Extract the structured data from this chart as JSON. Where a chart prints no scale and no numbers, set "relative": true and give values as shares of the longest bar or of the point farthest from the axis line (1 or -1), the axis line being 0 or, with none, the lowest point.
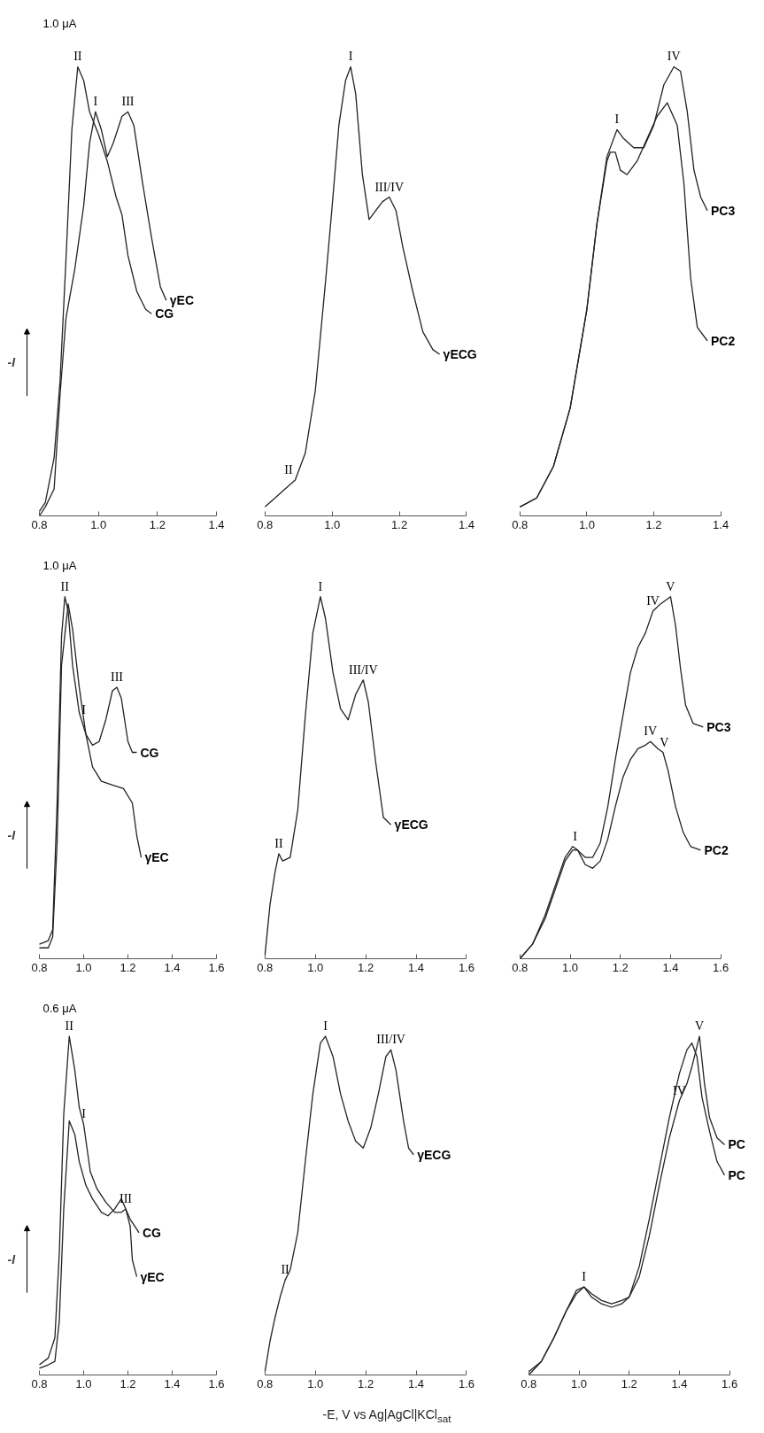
{
  "chart_data": [
    {
      "type": "line",
      "relative": true,
      "ylabel": "-I",
      "xlim": [
        0.8,
        1.4
      ],
      "xticks": [
        {
          "value": 0.8,
          "label": "0.8"
        },
        {
          "value": 1.0,
          "label": "1.0"
        },
        {
          "value": 1.2,
          "label": "1.2"
        },
        {
          "value": 1.4,
          "label": "1.4"
        }
      ],
      "series": [
        {
          "name": "CG",
          "color": "#222222",
          "x": [
            0.8,
            0.82,
            0.85,
            0.87,
            0.89,
            0.91,
            0.93,
            0.95,
            0.97,
            1.0,
            1.03,
            1.06,
            1.08,
            1.1,
            1.13,
            1.16,
            1.18
          ],
          "values": [
            0.01,
            0.03,
            0.13,
            0.3,
            0.57,
            0.86,
            1.0,
            0.97,
            0.9,
            0.85,
            0.79,
            0.71,
            0.67,
            0.58,
            0.5,
            0.46,
            0.45
          ]
        },
        {
          "name": "γEC",
          "color": "#222222",
          "x": [
            0.8,
            0.82,
            0.85,
            0.87,
            0.89,
            0.92,
            0.95,
            0.97,
            0.99,
            1.01,
            1.03,
            1.05,
            1.08,
            1.1,
            1.12,
            1.15,
            1.18,
            1.21,
            1.23
          ],
          "values": [
            0.0,
            0.02,
            0.06,
            0.27,
            0.44,
            0.55,
            0.69,
            0.83,
            0.9,
            0.86,
            0.8,
            0.83,
            0.89,
            0.9,
            0.87,
            0.74,
            0.62,
            0.51,
            0.48
          ]
        }
      ],
      "annotations": [
        "1.0 μA",
        {
          "text": "II",
          "x": 0.93,
          "y": 1.0
        },
        {
          "text": "I",
          "x": 0.99,
          "y": 0.9
        },
        {
          "text": "III",
          "x": 1.1,
          "y": 0.9
        }
      ]
    },
    {
      "type": "line",
      "relative": true,
      "xlim": [
        0.8,
        1.4
      ],
      "xticks": [
        {
          "value": 0.8,
          "label": "0.8"
        },
        {
          "value": 1.0,
          "label": "1.0"
        },
        {
          "value": 1.2,
          "label": "1.2"
        },
        {
          "value": 1.4,
          "label": "1.4"
        }
      ],
      "series": [
        {
          "name": "γECG",
          "color": "#222222",
          "x": [
            0.8,
            0.83,
            0.86,
            0.89,
            0.92,
            0.95,
            0.98,
            1.0,
            1.02,
            1.04,
            1.055,
            1.07,
            1.09,
            1.11,
            1.13,
            1.15,
            1.17,
            1.19,
            1.21,
            1.24,
            1.27,
            1.3,
            1.32
          ],
          "values": [
            0.02,
            0.04,
            0.06,
            0.08,
            0.14,
            0.28,
            0.52,
            0.69,
            0.87,
            0.97,
            1.0,
            0.94,
            0.76,
            0.66,
            0.68,
            0.7,
            0.71,
            0.68,
            0.6,
            0.5,
            0.41,
            0.37,
            0.36
          ]
        }
      ],
      "annotations": [
        {
          "text": "II",
          "x": 0.87,
          "y": 0.08
        },
        {
          "text": "I",
          "x": 1.055,
          "y": 1.0
        },
        {
          "text": "III/IV",
          "x": 1.17,
          "y": 0.71
        }
      ]
    },
    {
      "type": "line",
      "relative": true,
      "xlim": [
        0.8,
        1.4
      ],
      "xticks": [
        {
          "value": 0.8,
          "label": "0.8"
        },
        {
          "value": 1.0,
          "label": "1.0"
        },
        {
          "value": 1.2,
          "label": "1.2"
        },
        {
          "value": 1.4,
          "label": "1.4"
        }
      ],
      "series": [
        {
          "name": "PC3",
          "color": "#222222",
          "x": [
            0.8,
            0.85,
            0.9,
            0.95,
            1.0,
            1.03,
            1.06,
            1.09,
            1.11,
            1.14,
            1.17,
            1.2,
            1.23,
            1.26,
            1.28,
            1.3,
            1.32,
            1.34,
            1.36
          ],
          "values": [
            0.02,
            0.04,
            0.11,
            0.24,
            0.46,
            0.65,
            0.8,
            0.86,
            0.84,
            0.82,
            0.82,
            0.87,
            0.96,
            1.0,
            0.99,
            0.9,
            0.77,
            0.71,
            0.68
          ]
        },
        {
          "name": "PC2",
          "color": "#222222",
          "x": [
            0.8,
            0.85,
            0.9,
            0.95,
            1.0,
            1.03,
            1.06,
            1.07,
            1.085,
            1.1,
            1.12,
            1.15,
            1.18,
            1.21,
            1.24,
            1.27,
            1.29,
            1.31,
            1.33,
            1.36
          ],
          "values": [
            0.02,
            0.04,
            0.11,
            0.24,
            0.46,
            0.65,
            0.79,
            0.81,
            0.81,
            0.77,
            0.76,
            0.79,
            0.84,
            0.89,
            0.92,
            0.87,
            0.74,
            0.53,
            0.42,
            0.39
          ]
        }
      ],
      "annotations": [
        {
          "text": "I",
          "x": 1.09,
          "y": 0.86
        },
        {
          "text": "IV",
          "x": 1.26,
          "y": 1.0
        }
      ]
    },
    {
      "type": "line",
      "relative": true,
      "ylabel": "-I",
      "xlim": [
        0.8,
        1.6
      ],
      "xticks": [
        {
          "value": 0.8,
          "label": "0.8"
        },
        {
          "value": 1.0,
          "label": "1.0"
        },
        {
          "value": 1.2,
          "label": "1.2"
        },
        {
          "value": 1.4,
          "label": "1.4"
        },
        {
          "value": 1.6,
          "label": "1.6"
        }
      ],
      "series": [
        {
          "name": "CG",
          "color": "#222222",
          "x": [
            0.8,
            0.84,
            0.86,
            0.88,
            0.9,
            0.915,
            0.93,
            0.95,
            0.98,
            1.01,
            1.04,
            1.07,
            1.1,
            1.13,
            1.15,
            1.17,
            1.2,
            1.22,
            1.24
          ],
          "values": [
            0.04,
            0.05,
            0.08,
            0.43,
            0.89,
            1.0,
            0.96,
            0.81,
            0.68,
            0.62,
            0.59,
            0.6,
            0.66,
            0.74,
            0.75,
            0.72,
            0.6,
            0.57,
            0.57
          ]
        },
        {
          "name": "γEC",
          "color": "#222222",
          "x": [
            0.8,
            0.84,
            0.86,
            0.88,
            0.9,
            0.93,
            0.95,
            0.98,
            1.01,
            1.04,
            1.08,
            1.13,
            1.18,
            1.22,
            1.24,
            1.26
          ],
          "values": [
            0.03,
            0.03,
            0.06,
            0.32,
            0.81,
            0.98,
            0.91,
            0.75,
            0.62,
            0.53,
            0.49,
            0.48,
            0.47,
            0.43,
            0.34,
            0.28
          ]
        }
      ],
      "annotations": [
        "1.0 μA",
        {
          "text": "II",
          "x": 0.915,
          "y": 1.0
        },
        {
          "text": "I",
          "x": 1.0,
          "y": 0.66
        },
        {
          "text": "III",
          "x": 1.15,
          "y": 0.75
        }
      ]
    },
    {
      "type": "line",
      "relative": true,
      "xlim": [
        0.8,
        1.6
      ],
      "xticks": [
        {
          "value": 0.8,
          "label": "0.8"
        },
        {
          "value": 1.0,
          "label": "1.0"
        },
        {
          "value": 1.2,
          "label": "1.2"
        },
        {
          "value": 1.4,
          "label": "1.4"
        },
        {
          "value": 1.6,
          "label": "1.6"
        }
      ],
      "series": [
        {
          "name": "γECG",
          "color": "#222222",
          "x": [
            0.8,
            0.82,
            0.84,
            0.855,
            0.87,
            0.9,
            0.93,
            0.96,
            0.99,
            1.02,
            1.04,
            1.07,
            1.1,
            1.13,
            1.16,
            1.19,
            1.21,
            1.24,
            1.27,
            1.3
          ],
          "values": [
            0.01,
            0.15,
            0.24,
            0.29,
            0.27,
            0.28,
            0.41,
            0.67,
            0.9,
            1.0,
            0.94,
            0.79,
            0.69,
            0.66,
            0.73,
            0.77,
            0.71,
            0.54,
            0.39,
            0.37
          ]
        }
      ],
      "annotations": [
        {
          "text": "II",
          "x": 0.855,
          "y": 0.29
        },
        {
          "text": "I",
          "x": 1.02,
          "y": 1.0
        },
        {
          "text": "III/IV",
          "x": 1.19,
          "y": 0.77
        }
      ]
    },
    {
      "type": "line",
      "relative": true,
      "xlim": [
        0.8,
        1.6
      ],
      "xticks": [
        {
          "value": 0.8,
          "label": "0.8"
        },
        {
          "value": 1.0,
          "label": "1.0"
        },
        {
          "value": 1.2,
          "label": "1.2"
        },
        {
          "value": 1.4,
          "label": "1.4"
        },
        {
          "value": 1.6,
          "label": "1.6"
        }
      ],
      "series": [
        {
          "name": "PC3",
          "color": "#222222",
          "x": [
            0.8,
            0.85,
            0.9,
            0.95,
            0.98,
            1.01,
            1.03,
            1.06,
            1.09,
            1.12,
            1.15,
            1.18,
            1.21,
            1.24,
            1.27,
            1.3,
            1.33,
            1.36,
            1.4,
            1.42,
            1.44,
            1.46,
            1.49,
            1.53
          ],
          "values": [
            0.0,
            0.04,
            0.12,
            0.22,
            0.28,
            0.31,
            0.3,
            0.28,
            0.28,
            0.32,
            0.42,
            0.55,
            0.67,
            0.79,
            0.86,
            0.9,
            0.96,
            0.98,
            1.0,
            0.92,
            0.8,
            0.7,
            0.65,
            0.64
          ]
        },
        {
          "name": "PC2",
          "color": "#222222",
          "x": [
            0.8,
            0.85,
            0.9,
            0.95,
            0.98,
            1.01,
            1.03,
            1.06,
            1.09,
            1.12,
            1.15,
            1.18,
            1.21,
            1.24,
            1.27,
            1.3,
            1.32,
            1.35,
            1.37,
            1.39,
            1.42,
            1.45,
            1.48,
            1.52
          ],
          "values": [
            0.0,
            0.04,
            0.11,
            0.21,
            0.27,
            0.3,
            0.3,
            0.26,
            0.25,
            0.27,
            0.33,
            0.42,
            0.5,
            0.55,
            0.58,
            0.59,
            0.6,
            0.58,
            0.57,
            0.52,
            0.42,
            0.35,
            0.31,
            0.3
          ]
        }
      ],
      "annotations": [
        {
          "text": "I",
          "x": 1.02,
          "y": 0.31
        },
        {
          "text": "IV",
          "x": 1.33,
          "y": 0.96
        },
        {
          "text": "V",
          "x": 1.4,
          "y": 1.0
        },
        {
          "text": "IV",
          "x": 1.32,
          "y": 0.6
        },
        {
          "text": "V",
          "x": 1.375,
          "y": 0.57
        }
      ]
    },
    {
      "type": "line",
      "relative": true,
      "ylabel": "-I",
      "xlim": [
        0.8,
        1.6
      ],
      "xticks": [
        {
          "value": 0.8,
          "label": "0.8"
        },
        {
          "value": 1.0,
          "label": "1.0"
        },
        {
          "value": 1.2,
          "label": "1.2"
        },
        {
          "value": 1.4,
          "label": "1.4"
        },
        {
          "value": 1.6,
          "label": "1.6"
        }
      ],
      "series": [
        {
          "name": "CG",
          "color": "#222222",
          "x": [
            0.8,
            0.84,
            0.87,
            0.89,
            0.91,
            0.935,
            0.96,
            0.98,
            1.0,
            1.03,
            1.06,
            1.1,
            1.14,
            1.17,
            1.19,
            1.21,
            1.23,
            1.25
          ],
          "values": [
            0.03,
            0.05,
            0.11,
            0.36,
            0.77,
            1.0,
            0.9,
            0.79,
            0.74,
            0.6,
            0.55,
            0.51,
            0.48,
            0.48,
            0.49,
            0.46,
            0.44,
            0.42
          ]
        },
        {
          "name": "γEC",
          "color": "#222222",
          "x": [
            0.8,
            0.84,
            0.87,
            0.89,
            0.91,
            0.935,
            0.96,
            0.98,
            1.01,
            1.04,
            1.08,
            1.11,
            1.14,
            1.17,
            1.19,
            1.21,
            1.22,
            1.24
          ],
          "values": [
            0.02,
            0.03,
            0.04,
            0.16,
            0.49,
            0.75,
            0.71,
            0.63,
            0.56,
            0.52,
            0.48,
            0.47,
            0.49,
            0.52,
            0.49,
            0.44,
            0.34,
            0.29
          ]
        }
      ],
      "annotations": [
        "0.6 μA",
        {
          "text": "II",
          "x": 0.935,
          "y": 1.0
        },
        {
          "text": "I",
          "x": 1.0,
          "y": 0.74
        },
        {
          "text": "III",
          "x": 1.19,
          "y": 0.49
        }
      ]
    },
    {
      "type": "line",
      "relative": true,
      "xlabel": "-E, V vs Ag|AgCl|KCl$_{sat}$",
      "xlim": [
        0.8,
        1.6
      ],
      "xticks": [
        {
          "value": 0.8,
          "label": "0.8"
        },
        {
          "value": 1.0,
          "label": "1.0"
        },
        {
          "value": 1.2,
          "label": "1.2"
        },
        {
          "value": 1.4,
          "label": "1.4"
        },
        {
          "value": 1.6,
          "label": "1.6"
        }
      ],
      "series": [
        {
          "name": "γECG",
          "color": "#222222",
          "x": [
            0.8,
            0.82,
            0.84,
            0.86,
            0.88,
            0.9,
            0.93,
            0.96,
            0.99,
            1.02,
            1.04,
            1.07,
            1.1,
            1.13,
            1.16,
            1.19,
            1.22,
            1.25,
            1.28,
            1.3,
            1.32,
            1.35,
            1.37,
            1.39
          ],
          "values": [
            0.01,
            0.1,
            0.17,
            0.23,
            0.28,
            0.31,
            0.42,
            0.63,
            0.83,
            0.98,
            1.0,
            0.94,
            0.83,
            0.75,
            0.69,
            0.67,
            0.73,
            0.83,
            0.94,
            0.96,
            0.9,
            0.75,
            0.67,
            0.65
          ]
        }
      ],
      "annotations": [
        {
          "text": "II",
          "x": 0.88,
          "y": 0.28
        },
        {
          "text": "I",
          "x": 1.04,
          "y": 1.0
        },
        {
          "text": "III/IV",
          "x": 1.3,
          "y": 0.96
        }
      ]
    },
    {
      "type": "line",
      "relative": true,
      "xlim": [
        0.8,
        1.6
      ],
      "xticks": [
        {
          "value": 0.8,
          "label": "0.8"
        },
        {
          "value": 1.0,
          "label": "1.0"
        },
        {
          "value": 1.2,
          "label": "1.2"
        },
        {
          "value": 1.4,
          "label": "1.4"
        },
        {
          "value": 1.6,
          "label": "1.6"
        }
      ],
      "series": [
        {
          "name": "PC",
          "color": "#222222",
          "x": [
            0.8,
            0.85,
            0.9,
            0.95,
            0.99,
            1.02,
            1.05,
            1.09,
            1.13,
            1.17,
            1.2,
            1.24,
            1.28,
            1.32,
            1.36,
            1.4,
            1.43,
            1.45,
            1.48,
            1.5,
            1.52,
            1.55,
            1.58
          ],
          "values": [
            0.0,
            0.04,
            0.11,
            0.19,
            0.25,
            0.26,
            0.23,
            0.21,
            0.2,
            0.21,
            0.23,
            0.29,
            0.41,
            0.56,
            0.7,
            0.81,
            0.86,
            0.91,
            1.0,
            0.86,
            0.76,
            0.7,
            0.68
          ]
        },
        {
          "name": "PC",
          "color": "#222222",
          "x": [
            0.8,
            0.85,
            0.9,
            0.95,
            0.99,
            1.02,
            1.05,
            1.09,
            1.13,
            1.17,
            1.2,
            1.24,
            1.28,
            1.32,
            1.36,
            1.4,
            1.43,
            1.45,
            1.47,
            1.49,
            1.52,
            1.55,
            1.58
          ],
          "values": [
            0.01,
            0.04,
            0.11,
            0.19,
            0.24,
            0.26,
            0.24,
            0.22,
            0.21,
            0.22,
            0.23,
            0.32,
            0.46,
            0.61,
            0.76,
            0.89,
            0.96,
            0.98,
            0.94,
            0.82,
            0.72,
            0.63,
            0.59
          ]
        }
      ],
      "annotations": [
        {
          "text": "I",
          "x": 1.02,
          "y": 0.26
        },
        {
          "text": "IV",
          "x": 1.4,
          "y": 0.81
        },
        {
          "text": "V",
          "x": 1.48,
          "y": 1.0
        }
      ]
    }
  ]
}
